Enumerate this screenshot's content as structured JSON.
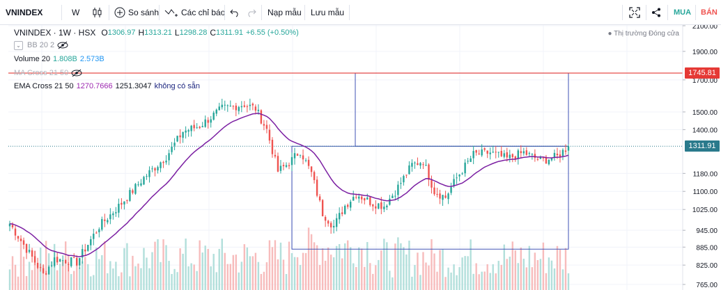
{
  "toolbar": {
    "symbol": "VNINDEX",
    "interval": "W",
    "compare": "So sánh",
    "indicators": "Các chỉ báo",
    "load_layout": "Nạp mẫu",
    "save_layout": "Lưu mẫu",
    "buy": "MUA",
    "sell": "BÁN"
  },
  "legend": {
    "title": "VNINDEX · 1W · HSX",
    "o_label": "O",
    "o": "1306.97",
    "h_label": "H",
    "h": "1313.21",
    "l_label": "L",
    "l": "1298.28",
    "c_label": "C",
    "c": "1311.91",
    "change": "+6.55 (+0.50%)",
    "bb": "BB 20 2",
    "volume_label": "Volume 20",
    "volume_1": "1.808B",
    "volume_2": "2.573B",
    "ma_cross": "MA Cross 21 50",
    "ema_cross": "EMA Cross 21 50",
    "ema_1": "1270.7666",
    "ema_2": "1251.3047",
    "ema_na": "không có sẵn"
  },
  "status": "● Thị trường Đóng cửa",
  "colors": {
    "up": "#26a69a",
    "down": "#ef5350",
    "vol_up": "#b2dfdb",
    "vol_down": "#f7bcbc",
    "ema": "#7b1fa2",
    "hline": "#e53935",
    "box": "#3f51b5",
    "current": "#2a7a8c"
  },
  "chart_data": {
    "type": "candlestick",
    "symbol": "VNINDEX",
    "interval": "1W",
    "y_axis": {
      "scale": "log",
      "ticks": [
        2100,
        1900,
        1700,
        1500,
        1400,
        1180,
        1100,
        1025,
        945,
        885,
        825,
        765
      ],
      "tick_labels": [
        "2100.00",
        "1900.00",
        "1700.00",
        "1500.00",
        "1400.00",
        "1180.00",
        "1100.00",
        "1025.00",
        "945.00",
        "885.00",
        "825.00",
        "765.00"
      ]
    },
    "current_price": 1311.91,
    "current_label": "1311.91",
    "horizontal_line": 1745.81,
    "horizontal_line_label": "1745.81",
    "box_1": {
      "top": 1745.81,
      "bottom": 1311.91
    },
    "box_2": {
      "top": 1311.91,
      "bottom": 878
    },
    "anchors": [
      {
        "i": 0,
        "p": 970
      },
      {
        "i": 8,
        "p": 850
      },
      {
        "i": 12,
        "p": 795
      },
      {
        "i": 16,
        "p": 845
      },
      {
        "i": 24,
        "p": 835
      },
      {
        "i": 32,
        "p": 960
      },
      {
        "i": 40,
        "p": 1050
      },
      {
        "i": 48,
        "p": 1160
      },
      {
        "i": 56,
        "p": 1260
      },
      {
        "i": 62,
        "p": 1390
      },
      {
        "i": 68,
        "p": 1420
      },
      {
        "i": 76,
        "p": 1520
      },
      {
        "i": 84,
        "p": 1545
      },
      {
        "i": 88,
        "p": 1520
      },
      {
        "i": 92,
        "p": 1400
      },
      {
        "i": 96,
        "p": 1190
      },
      {
        "i": 100,
        "p": 1230
      },
      {
        "i": 104,
        "p": 1290
      },
      {
        "i": 108,
        "p": 1180
      },
      {
        "i": 112,
        "p": 1010
      },
      {
        "i": 116,
        "p": 960
      },
      {
        "i": 120,
        "p": 1040
      },
      {
        "i": 124,
        "p": 1090
      },
      {
        "i": 130,
        "p": 1050
      },
      {
        "i": 134,
        "p": 1040
      },
      {
        "i": 138,
        "p": 1100
      },
      {
        "i": 144,
        "p": 1220
      },
      {
        "i": 148,
        "p": 1240
      },
      {
        "i": 152,
        "p": 1100
      },
      {
        "i": 156,
        "p": 1075
      },
      {
        "i": 160,
        "p": 1160
      },
      {
        "i": 166,
        "p": 1270
      },
      {
        "i": 172,
        "p": 1280
      },
      {
        "i": 178,
        "p": 1250
      },
      {
        "i": 184,
        "p": 1280
      },
      {
        "i": 190,
        "p": 1240
      },
      {
        "i": 196,
        "p": 1260
      },
      {
        "i": 200,
        "p": 1312
      }
    ]
  }
}
